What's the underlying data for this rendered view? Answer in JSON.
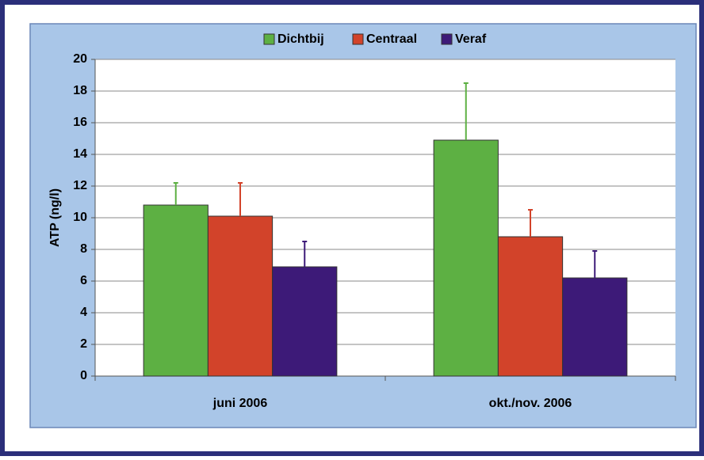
{
  "chart_data": {
    "type": "bar",
    "y_label": "ATP (ng/l)",
    "categories": [
      "juni 2006",
      "okt./nov. 2006"
    ],
    "series": [
      {
        "name": "Dichtbij",
        "color": "#5db043",
        "values": [
          10.8,
          14.9
        ],
        "errors": [
          1.4,
          3.6
        ]
      },
      {
        "name": "Centraal",
        "color": "#d2432a",
        "values": [
          10.1,
          8.8
        ],
        "errors": [
          2.1,
          1.7
        ]
      },
      {
        "name": "Veraf",
        "color": "#3d1a78",
        "values": [
          6.9,
          6.2
        ],
        "errors": [
          1.6,
          1.7
        ]
      }
    ],
    "ylim": [
      0,
      20
    ],
    "yticks": [
      0,
      2,
      4,
      6,
      8,
      10,
      12,
      14,
      16,
      18,
      20
    ],
    "grid": true
  }
}
